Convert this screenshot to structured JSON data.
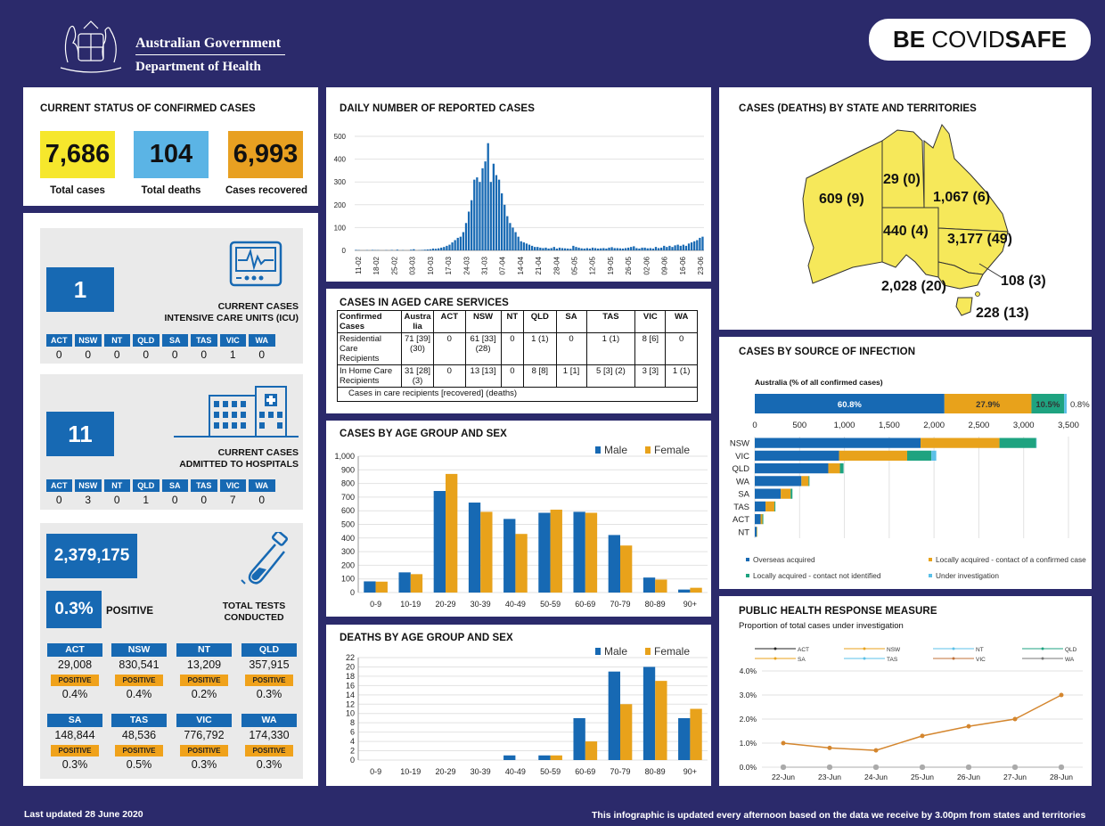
{
  "header": {
    "gov_line1": "Australian Government",
    "gov_line2": "Department of Health",
    "badge_be": "BE ",
    "badge_covid": "COVID",
    "badge_safe": "SAFE"
  },
  "status": {
    "title": "CURRENT STATUS OF CONFIRMED CASES",
    "total_cases": "7,686",
    "total_cases_label": "Total cases",
    "total_deaths": "104",
    "total_deaths_label": "Total deaths",
    "recovered": "6,993",
    "recovered_label": "Cases recovered",
    "colors": {
      "cases": "#f6e72c",
      "deaths": "#5bb4e5",
      "recovered": "#e8a021"
    }
  },
  "icu": {
    "value": "1",
    "label_line1": "CURRENT CASES",
    "label_line2": "INTENSIVE CARE UNITS (ICU)",
    "states": [
      "ACT",
      "NSW",
      "NT",
      "QLD",
      "SA",
      "TAS",
      "VIC",
      "WA"
    ],
    "values": [
      "0",
      "0",
      "0",
      "0",
      "0",
      "0",
      "1",
      "0"
    ]
  },
  "hospital": {
    "value": "11",
    "label_line1": "CURRENT CASES",
    "label_line2": "ADMITTED TO HOSPITALS",
    "states": [
      "ACT",
      "NSW",
      "NT",
      "QLD",
      "SA",
      "TAS",
      "VIC",
      "WA"
    ],
    "values": [
      "0",
      "3",
      "0",
      "1",
      "0",
      "0",
      "7",
      "0"
    ]
  },
  "tests": {
    "total": "2,379,175",
    "positive_pct": "0.3%",
    "positive_label": "POSITIVE",
    "label_line1": "TOTAL TESTS",
    "label_line2": "CONDUCTED",
    "pos_tag": "POSITIVE",
    "rows": [
      [
        {
          "state": "ACT",
          "tests": "29,008",
          "pct": "0.4%"
        },
        {
          "state": "NSW",
          "tests": "830,541",
          "pct": "0.4%"
        },
        {
          "state": "NT",
          "tests": "13,209",
          "pct": "0.2%"
        },
        {
          "state": "QLD",
          "tests": "357,915",
          "pct": "0.3%"
        }
      ],
      [
        {
          "state": "SA",
          "tests": "148,844",
          "pct": "0.3%"
        },
        {
          "state": "TAS",
          "tests": "48,536",
          "pct": "0.5%"
        },
        {
          "state": "VIC",
          "tests": "776,792",
          "pct": "0.3%"
        },
        {
          "state": "WA",
          "tests": "174,330",
          "pct": "0.3%"
        }
      ]
    ]
  },
  "daily": {
    "title": "DAILY NUMBER OF REPORTED CASES",
    "y_ticks": [
      "0",
      "100",
      "200",
      "300",
      "400",
      "500"
    ],
    "x_ticks": [
      "11-02",
      "18-02",
      "25-02",
      "03-03",
      "10-03",
      "17-03",
      "24-03",
      "31-03",
      "07-04",
      "14-04",
      "21-04",
      "28-04",
      "05-05",
      "12-05",
      "19-05",
      "26-05",
      "02-06",
      "09-06",
      "16-06",
      "23-06"
    ]
  },
  "aged": {
    "title": "CASES IN AGED CARE SERVICES",
    "headers": [
      "Confirmed Cases",
      "Austra lia",
      "ACT",
      "NSW",
      "NT",
      "QLD",
      "SA",
      "TAS",
      "VIC",
      "WA"
    ],
    "rows": [
      [
        "Residential Care Recipients",
        "71 [39] (30)",
        "0",
        "61 [33] (28)",
        "0",
        "1 (1)",
        "0",
        "1 (1)",
        "8 [6]",
        "0"
      ],
      [
        "In Home Care Recipients",
        "31 [28] (3)",
        "0",
        "13 [13]",
        "0",
        "8 [8]",
        "1 [1]",
        "5 [3] (2)",
        "3 [3]",
        "1 (1)"
      ]
    ],
    "note": "Cases in care recipients [recovered] (deaths)"
  },
  "age_sex": {
    "title": "CASES BY AGE GROUP AND SEX",
    "legend_male": "Male",
    "legend_female": "Female",
    "y_ticks": [
      "0",
      "100",
      "200",
      "300",
      "400",
      "500",
      "600",
      "700",
      "800",
      "900",
      "1,000"
    ]
  },
  "deaths_age": {
    "title": "DEATHS BY AGE GROUP AND SEX",
    "legend_male": "Male",
    "legend_female": "Female",
    "y_ticks": [
      "0",
      "2",
      "4",
      "6",
      "8",
      "10",
      "12",
      "14",
      "16",
      "18",
      "20",
      "22"
    ]
  },
  "map": {
    "title": "CASES (DEATHS) BY STATE AND TERRITORIES",
    "wa": "609 (9)",
    "nt": "29 (0)",
    "qld": "1,067 (6)",
    "sa": "440 (4)",
    "nsw": "3,177 (49)",
    "act": "108 (3)",
    "vic": "2,028 (20)",
    "tas": "228 (13)",
    "color": "#f6e85a"
  },
  "source": {
    "title": "CASES BY SOURCE OF INFECTION",
    "subtitle": "Australia (% of all confirmed cases)",
    "pct_labels": [
      "60.8%",
      "27.9%",
      "10.5%",
      "0.8%"
    ],
    "x_ticks": [
      "0",
      "500",
      "1,000",
      "1,500",
      "2,000",
      "2,500",
      "3,000",
      "3,500"
    ],
    "legend": [
      "Overseas acquired",
      "Locally acquired - contact of a confirmed case",
      "Locally acquired - contact not identified",
      "Under investigation"
    ],
    "colors": [
      "#1769b3",
      "#e8a21b",
      "#1ea380",
      "#5bc0e8"
    ]
  },
  "phrm": {
    "title": "PUBLIC HEALTH RESPONSE MEASURE",
    "subtitle": "Proportion of total cases under investigation",
    "legend": [
      "ACT",
      "NSW",
      "NT",
      "QLD",
      "SA",
      "TAS",
      "VIC",
      "WA"
    ],
    "y_ticks": [
      "0.0%",
      "1.0%",
      "2.0%",
      "3.0%",
      "4.0%"
    ],
    "x_ticks": [
      "22-Jun",
      "23-Jun",
      "24-Jun",
      "25-Jun",
      "26-Jun",
      "27-Jun",
      "28-Jun"
    ]
  },
  "footer": {
    "updated": "Last updated 28 June 2020",
    "note": "This infographic is updated every afternoon based on the data we receive by 3.00pm from states and territories"
  },
  "chart_data": [
    {
      "type": "bar",
      "title": "DAILY NUMBER OF REPORTED CASES",
      "ylim": [
        0,
        500
      ],
      "x_start": "11-02",
      "x_end": "28-06",
      "values": [
        2,
        1,
        0,
        0,
        1,
        0,
        2,
        1,
        1,
        0,
        0,
        1,
        0,
        2,
        0,
        3,
        0,
        1,
        0,
        0,
        3,
        5,
        0,
        1,
        2,
        3,
        4,
        5,
        8,
        7,
        9,
        12,
        15,
        20,
        25,
        35,
        45,
        55,
        60,
        80,
        120,
        170,
        220,
        310,
        320,
        300,
        360,
        390,
        470,
        300,
        380,
        330,
        310,
        250,
        200,
        150,
        120,
        100,
        80,
        60,
        40,
        35,
        30,
        25,
        20,
        15,
        15,
        12,
        10,
        12,
        8,
        10,
        15,
        8,
        12,
        10,
        9,
        8,
        7,
        20,
        15,
        12,
        9,
        8,
        10,
        8,
        12,
        10,
        8,
        9,
        10,
        8,
        12,
        14,
        10,
        10,
        9,
        8,
        10,
        12,
        15,
        18,
        10,
        8,
        12,
        12,
        9,
        10,
        8,
        15,
        10,
        12,
        20,
        15,
        20,
        15,
        22,
        25,
        20,
        25,
        20,
        30,
        35,
        40,
        45,
        55,
        60
      ]
    },
    {
      "type": "bar",
      "title": "CASES BY AGE GROUP AND SEX",
      "categories": [
        "0-9",
        "10-19",
        "20-29",
        "30-39",
        "40-49",
        "50-59",
        "60-69",
        "70-79",
        "80-89",
        "90+"
      ],
      "series": [
        {
          "name": "Male",
          "values": [
            82,
            148,
            745,
            660,
            540,
            585,
            592,
            422,
            110,
            22
          ]
        },
        {
          "name": "Female",
          "values": [
            80,
            135,
            870,
            592,
            430,
            608,
            585,
            345,
            95,
            35
          ]
        }
      ],
      "ylim": [
        0,
        1000
      ]
    },
    {
      "type": "bar",
      "title": "DEATHS BY AGE GROUP AND SEX",
      "categories": [
        "0-9",
        "10-19",
        "20-29",
        "30-39",
        "40-49",
        "50-59",
        "60-69",
        "70-79",
        "80-89",
        "90+"
      ],
      "series": [
        {
          "name": "Male",
          "values": [
            0,
            0,
            0,
            0,
            1,
            1,
            9,
            19,
            20,
            9
          ]
        },
        {
          "name": "Female",
          "values": [
            0,
            0,
            0,
            0,
            0,
            1,
            4,
            12,
            17,
            11
          ]
        }
      ],
      "ylim": [
        0,
        22
      ]
    },
    {
      "type": "bar",
      "title": "CASES BY SOURCE OF INFECTION",
      "categories": [
        "NSW",
        "VIC",
        "QLD",
        "WA",
        "SA",
        "TAS",
        "ACT",
        "NT"
      ],
      "series": [
        {
          "name": "Overseas acquired",
          "values": [
            1850,
            940,
            820,
            520,
            290,
            120,
            65,
            20
          ]
        },
        {
          "name": "Locally acquired - contact of a confirmed case",
          "values": [
            880,
            760,
            130,
            80,
            110,
            100,
            20,
            5
          ]
        },
        {
          "name": "Locally acquired - contact not identified",
          "values": [
            410,
            270,
            40,
            10,
            20,
            10,
            10,
            2
          ]
        },
        {
          "name": "Under investigation",
          "values": [
            5,
            55,
            1,
            0,
            0,
            0,
            0,
            0
          ]
        }
      ],
      "xlim": [
        0,
        3500
      ]
    },
    {
      "type": "line",
      "title": "PUBLIC HEALTH RESPONSE MEASURE",
      "x": [
        "22-Jun",
        "23-Jun",
        "24-Jun",
        "25-Jun",
        "26-Jun",
        "27-Jun",
        "28-Jun"
      ],
      "series": [
        {
          "name": "VIC",
          "values": [
            1.0,
            0.8,
            0.7,
            1.3,
            1.7,
            2.0,
            3.0
          ]
        },
        {
          "name": "ACT",
          "values": [
            0,
            0,
            0,
            0,
            0,
            0,
            0
          ]
        },
        {
          "name": "NSW",
          "values": [
            0,
            0,
            0,
            0,
            0,
            0,
            0
          ]
        },
        {
          "name": "NT",
          "values": [
            0,
            0,
            0,
            0,
            0,
            0,
            0
          ]
        },
        {
          "name": "QLD",
          "values": [
            0,
            0,
            0,
            0,
            0,
            0,
            0
          ]
        },
        {
          "name": "SA",
          "values": [
            0,
            0,
            0,
            0,
            0,
            0,
            0
          ]
        },
        {
          "name": "TAS",
          "values": [
            0,
            0,
            0,
            0,
            0,
            0,
            0
          ]
        },
        {
          "name": "WA",
          "values": [
            0,
            0,
            0,
            0,
            0,
            0,
            0
          ]
        }
      ],
      "ylim": [
        0,
        4
      ]
    }
  ]
}
